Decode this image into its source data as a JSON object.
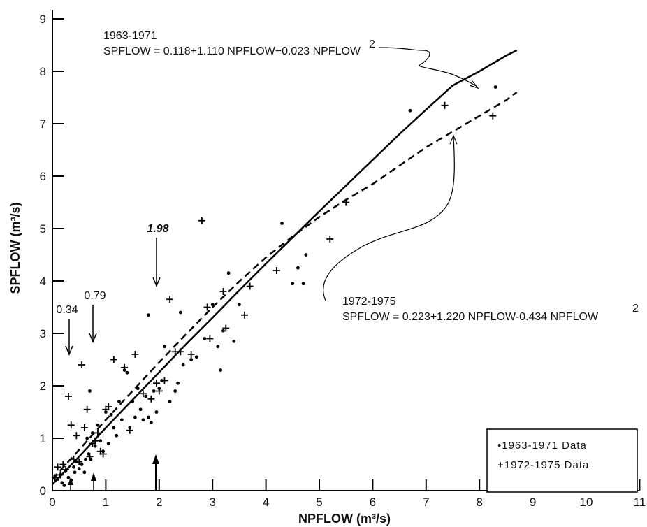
{
  "chart_data": {
    "type": "scatter",
    "xlabel": "NPFLOW   (m³/s)",
    "ylabel": "SPFLOW   (m³/s)",
    "xlim": [
      0,
      11
    ],
    "ylim": [
      0,
      9
    ],
    "x_ticks": [
      "0",
      "1",
      "2",
      "3",
      "4",
      "5",
      "6",
      "7",
      "8",
      "9",
      "10",
      "11"
    ],
    "y_ticks": [
      "0",
      "1",
      "2",
      "3",
      "4",
      "5",
      "6",
      "7",
      "8",
      "9"
    ],
    "grid": false,
    "legend_position": "bottom-right",
    "legend": [
      "•1963-1971 Data",
      "+1972-1975 Data"
    ],
    "annotations": {
      "eq1_title": "1963-1971",
      "eq1_formula": "SPFLOW = 0.118+1.110 NPFLOW−0.023 NPFLOW",
      "eq1_sup": "2",
      "eq2_title": "1972-1975",
      "eq2_formula": "SPFLOW = 0.223+1.220 NPFLOW-0.434 NPFLOW",
      "eq2_sup": "2",
      "marker_034": "0.34",
      "marker_079": "0.79",
      "marker_198": "1.98"
    },
    "series": [
      {
        "label": "1963-1971 Data",
        "marker": "dot",
        "points": [
          [
            0.05,
            0.28
          ],
          [
            0.1,
            0.22
          ],
          [
            0.15,
            0.3
          ],
          [
            0.18,
            0.15
          ],
          [
            0.22,
            0.1
          ],
          [
            0.25,
            0.38
          ],
          [
            0.3,
            0.25
          ],
          [
            0.35,
            0.2
          ],
          [
            0.4,
            0.45
          ],
          [
            0.42,
            0.35
          ],
          [
            0.45,
            0.55
          ],
          [
            0.5,
            0.42
          ],
          [
            0.55,
            0.5
          ],
          [
            0.6,
            0.35
          ],
          [
            0.62,
            0.6
          ],
          [
            0.65,
            1.0
          ],
          [
            0.68,
            0.7
          ],
          [
            0.7,
            1.9
          ],
          [
            0.72,
            0.6
          ],
          [
            0.75,
            1.1
          ],
          [
            0.8,
            0.85
          ],
          [
            0.85,
            1.25
          ],
          [
            0.9,
            0.95
          ],
          [
            0.95,
            0.75
          ],
          [
            1.0,
            1.5
          ],
          [
            1.05,
            0.9
          ],
          [
            1.1,
            1.45
          ],
          [
            1.15,
            1.2
          ],
          [
            1.2,
            1.05
          ],
          [
            1.25,
            1.7
          ],
          [
            1.3,
            1.35
          ],
          [
            1.35,
            2.3
          ],
          [
            1.4,
            2.25
          ],
          [
            1.45,
            1.2
          ],
          [
            1.5,
            1.7
          ],
          [
            1.55,
            1.4
          ],
          [
            1.6,
            1.95
          ],
          [
            1.65,
            1.55
          ],
          [
            1.7,
            1.35
          ],
          [
            1.75,
            1.8
          ],
          [
            1.8,
            1.4
          ],
          [
            1.85,
            1.3
          ],
          [
            1.9,
            1.9
          ],
          [
            1.95,
            1.5
          ],
          [
            2.0,
            1.95
          ],
          [
            2.05,
            2.1
          ],
          [
            2.1,
            2.75
          ],
          [
            2.2,
            1.7
          ],
          [
            2.3,
            1.9
          ],
          [
            2.35,
            2.05
          ],
          [
            2.4,
            3.4
          ],
          [
            2.45,
            2.4
          ],
          [
            2.6,
            2.5
          ],
          [
            2.7,
            2.55
          ],
          [
            2.85,
            2.9
          ],
          [
            3.0,
            3.55
          ],
          [
            3.1,
            2.75
          ],
          [
            3.15,
            2.3
          ],
          [
            3.2,
            3.05
          ],
          [
            3.3,
            4.15
          ],
          [
            3.4,
            2.85
          ],
          [
            3.5,
            3.55
          ],
          [
            4.3,
            5.1
          ],
          [
            4.5,
            3.95
          ],
          [
            4.6,
            4.25
          ],
          [
            4.7,
            3.95
          ],
          [
            4.75,
            4.5
          ],
          [
            6.7,
            7.25
          ],
          [
            8.3,
            7.7
          ],
          [
            1.8,
            3.35
          ]
        ]
      },
      {
        "label": "1972-1975 Data",
        "marker": "plus",
        "points": [
          [
            0.05,
            0.25
          ],
          [
            0.1,
            0.45
          ],
          [
            0.15,
            0.3
          ],
          [
            0.2,
            0.5
          ],
          [
            0.25,
            0.4
          ],
          [
            0.3,
            1.8
          ],
          [
            0.35,
            1.25
          ],
          [
            0.4,
            0.6
          ],
          [
            0.45,
            1.05
          ],
          [
            0.5,
            0.55
          ],
          [
            0.55,
            2.4
          ],
          [
            0.6,
            1.2
          ],
          [
            0.65,
            1.55
          ],
          [
            0.7,
            0.65
          ],
          [
            0.75,
            0.9
          ],
          [
            0.8,
            0.95
          ],
          [
            0.85,
            1.1
          ],
          [
            0.9,
            0.75
          ],
          [
            0.95,
            0.7
          ],
          [
            1.0,
            1.55
          ],
          [
            1.05,
            1.6
          ],
          [
            1.15,
            2.5
          ],
          [
            1.35,
            2.35
          ],
          [
            1.45,
            1.15
          ],
          [
            1.55,
            2.6
          ],
          [
            1.7,
            1.85
          ],
          [
            1.85,
            1.75
          ],
          [
            1.95,
            2.05
          ],
          [
            2.0,
            1.9
          ],
          [
            2.1,
            2.1
          ],
          [
            2.2,
            3.65
          ],
          [
            2.3,
            2.65
          ],
          [
            2.4,
            2.65
          ],
          [
            2.6,
            2.6
          ],
          [
            2.8,
            5.15
          ],
          [
            2.9,
            3.5
          ],
          [
            2.95,
            2.9
          ],
          [
            3.2,
            3.8
          ],
          [
            3.25,
            3.1
          ],
          [
            3.6,
            3.35
          ],
          [
            3.7,
            3.9
          ],
          [
            4.2,
            4.2
          ],
          [
            5.2,
            4.8
          ],
          [
            5.5,
            5.5
          ],
          [
            7.35,
            7.35
          ],
          [
            8.25,
            7.15
          ]
        ]
      }
    ],
    "fits": [
      {
        "label": "1963-1971",
        "style": "solid",
        "x": [
          0,
          0.5,
          1,
          1.5,
          2,
          2.5,
          3,
          3.5,
          4,
          4.5,
          5,
          5.5,
          6,
          6.5,
          7,
          7.5,
          8,
          8.5,
          8.7
        ],
        "y": [
          0.12,
          0.65,
          1.2,
          1.73,
          2.26,
          2.79,
          3.3,
          3.82,
          4.33,
          4.83,
          5.33,
          5.82,
          6.31,
          6.8,
          7.27,
          7.73,
          8.0,
          8.3,
          8.4
        ]
      },
      {
        "label": "1972-1975",
        "style": "dashed",
        "x": [
          0,
          0.5,
          1,
          1.5,
          2,
          2.5,
          3,
          3.5,
          4,
          4.5,
          5,
          5.5,
          6,
          6.5,
          7,
          7.5,
          8,
          8.5,
          8.7
        ],
        "y": [
          0.22,
          0.78,
          1.35,
          1.9,
          2.45,
          2.98,
          3.5,
          3.99,
          4.45,
          4.85,
          5.22,
          5.55,
          5.85,
          6.2,
          6.55,
          6.85,
          7.15,
          7.45,
          7.6
        ]
      }
    ]
  }
}
